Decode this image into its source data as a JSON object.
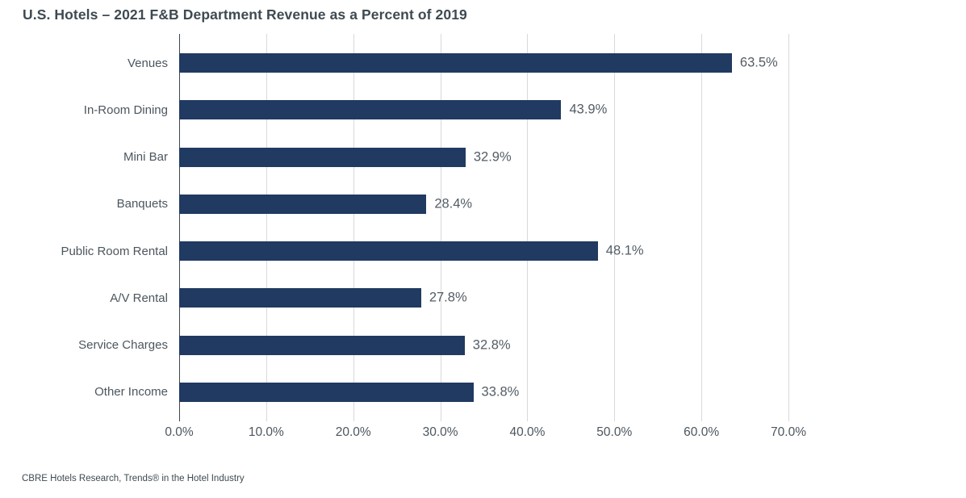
{
  "title": "U.S. Hotels – 2021 F&B Department Revenue as a Percent of 2019",
  "source": "CBRE Hotels Research, Trends® in the Hotel Industry",
  "chart_data": {
    "type": "bar",
    "orientation": "horizontal",
    "title": "U.S. Hotels – 2021 F&B Department Revenue as a Percent of 2019",
    "categories": [
      "Venues",
      "In-Room Dining",
      "Mini Bar",
      "Banquets",
      "Public Room Rental",
      "A/V Rental",
      "Service Charges",
      "Other Income"
    ],
    "values": [
      63.5,
      43.9,
      32.9,
      28.4,
      48.1,
      27.8,
      32.8,
      33.8
    ],
    "value_labels": [
      "63.5%",
      "43.9%",
      "32.9%",
      "28.4%",
      "48.1%",
      "27.8%",
      "32.8%",
      "33.8%"
    ],
    "xlabel": "",
    "ylabel": "",
    "xlim": [
      0,
      70
    ],
    "x_ticks": [
      0,
      10,
      20,
      30,
      40,
      50,
      60,
      70
    ],
    "x_tick_labels": [
      "0.0%",
      "10.0%",
      "20.0%",
      "30.0%",
      "40.0%",
      "50.0%",
      "60.0%",
      "70.0%"
    ],
    "grid": "vertical-only",
    "legend": "none",
    "data_labels": "outside-end",
    "colors": {
      "bar": "#203A61",
      "grid": "#D9D9D9",
      "axis": "#3F474C",
      "title": "#3E4A51",
      "label": "#4C565E",
      "value": "#535D65",
      "background": "#FFFFFF"
    }
  }
}
